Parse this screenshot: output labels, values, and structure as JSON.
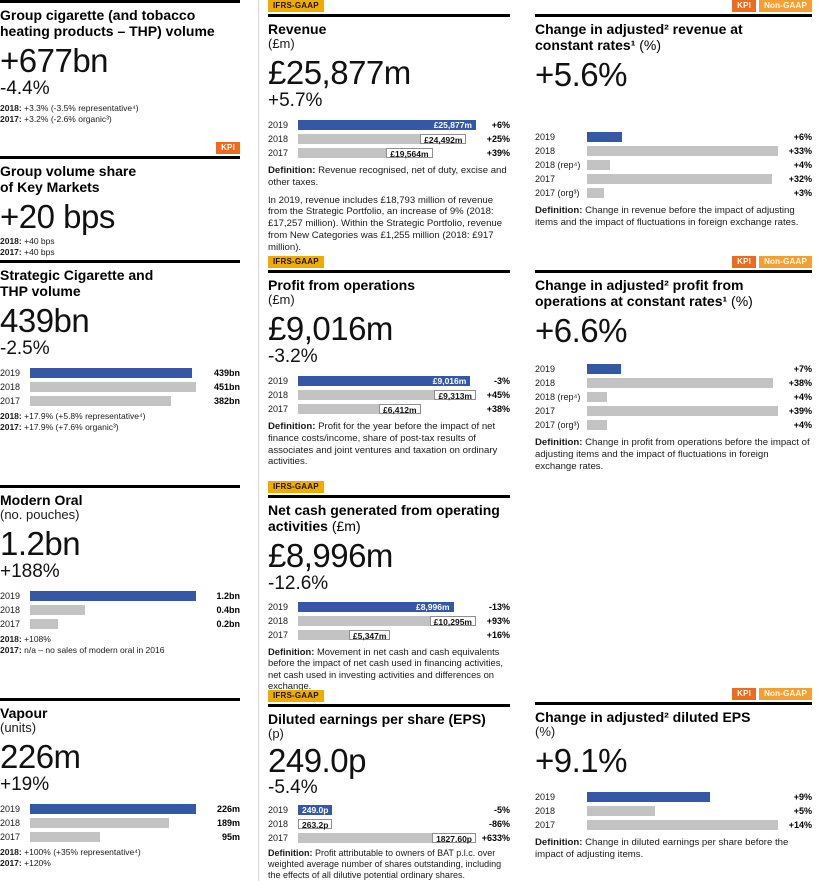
{
  "labels": {
    "definition": "Definition:"
  },
  "tags": {
    "kpi": "KPI",
    "non_gaap": "Non-GAAP",
    "ifrs": "IFRS-GAAP"
  },
  "colors": {
    "bar_blue": "#3557a6",
    "bar_gray": "#c3c3c3",
    "tag_kpi": "#ed6b21",
    "tag_non_gaap": "#f5a02e",
    "tag_ifrs": "#efab00",
    "rule": "#000000"
  },
  "left": {
    "volume": {
      "title": "Group cigarette (and tobacco heating products – THP) volume",
      "big": "+677bn",
      "delta": "-4.4%",
      "footnotes": [
        {
          "label": "2018:",
          "text": "+3.3% (-3.5% representative⁴)"
        },
        {
          "label": "2017:",
          "text": "+3.2% (-2.6% organic³)"
        }
      ]
    },
    "share": {
      "title": "Group volume share of Key Markets",
      "big": "+20 bps",
      "footnotes": [
        {
          "label": "2018:",
          "text": "+40 bps"
        },
        {
          "label": "2017:",
          "text": "+40 bps"
        }
      ]
    },
    "strategic": {
      "title": "Strategic Cigarette and THP volume",
      "big": "439bn",
      "delta": "-2.5%",
      "chart": {
        "type": "bar",
        "max": 451,
        "rows": [
          {
            "year": "2019",
            "v": 439,
            "label": "439bn"
          },
          {
            "year": "2018",
            "v": 451,
            "label": "451bn"
          },
          {
            "year": "2017",
            "v": 382,
            "label": "382bn"
          }
        ]
      },
      "footnotes": [
        {
          "label": "2018:",
          "text": "+17.9% (+5.8% representative⁴)"
        },
        {
          "label": "2017:",
          "text": "+17.9% (+7.6% organic³)"
        }
      ]
    },
    "modern_oral": {
      "title": "Modern Oral",
      "unit": "(no. pouches)",
      "big": "1.2bn",
      "delta": "+188%",
      "chart": {
        "type": "bar",
        "max": 1.2,
        "rows": [
          {
            "year": "2019",
            "v": 1.2,
            "label": "1.2bn"
          },
          {
            "year": "2018",
            "v": 0.4,
            "label": "0.4bn"
          },
          {
            "year": "2017",
            "v": 0.2,
            "label": "0.2bn"
          }
        ]
      },
      "footnotes": [
        {
          "label": "2018:",
          "text": "+108%"
        },
        {
          "label": "2017:",
          "text": "n/a – no sales of modern oral in 2016"
        }
      ]
    },
    "vapour": {
      "title": "Vapour",
      "unit": "(units)",
      "big": "226m",
      "delta": "+19%",
      "chart": {
        "type": "bar",
        "max": 226,
        "rows": [
          {
            "year": "2019",
            "v": 226,
            "label": "226m"
          },
          {
            "year": "2018",
            "v": 189,
            "label": "189m"
          },
          {
            "year": "2017",
            "v": 95,
            "label": "95m"
          }
        ]
      },
      "footnotes": [
        {
          "label": "2018:",
          "text": "+100% (+35% representative⁴)"
        },
        {
          "label": "2017:",
          "text": "+120%"
        }
      ]
    }
  },
  "middle": {
    "revenue": {
      "title": "Revenue",
      "unit": "(£m)",
      "big": "£25,877m",
      "delta": "+5.7%",
      "chart": {
        "type": "bar",
        "max": 25877,
        "rows": [
          {
            "year": "2019",
            "v": 25877,
            "label": "£25,877m",
            "pct": "+6%"
          },
          {
            "year": "2018",
            "v": 24492,
            "label": "£24,492m",
            "pct": "+25%"
          },
          {
            "year": "2017",
            "v": 19564,
            "label": "£19,564m",
            "pct": "+39%"
          }
        ]
      },
      "definition": "Revenue recognised, net of duty, excise and other taxes.",
      "body": "In 2019, revenue includes £18,793 million of revenue from the Strategic Portfolio, an increase of 9% (2018: £17,257 million). Within the Strategic Portfolio, revenue from New Categories was £1,255 million (2018: £917 million)."
    },
    "profit": {
      "title": "Profit from operations",
      "unit": "(£m)",
      "big": "£9,016m",
      "delta": "-3.2%",
      "chart": {
        "type": "bar",
        "max": 9313,
        "rows": [
          {
            "year": "2019",
            "v": 9016,
            "label": "£9,016m",
            "pct": "-3%"
          },
          {
            "year": "2018",
            "v": 9313,
            "label": "£9,313m",
            "pct": "+45%"
          },
          {
            "year": "2017",
            "v": 6412,
            "label": "£6,412m",
            "pct": "+38%"
          }
        ]
      },
      "definition": "Profit for the year before the impact of net finance costs/income, share of post-tax results of associates and joint ventures and taxation on ordinary activities."
    },
    "netcash": {
      "title": "Net cash generated from operating activities",
      "unit": "(£m)",
      "big": "£8,996m",
      "delta": "-12.6%",
      "chart": {
        "type": "bar",
        "max": 10295,
        "rows": [
          {
            "year": "2019",
            "v": 8996,
            "label": "£8,996m",
            "pct": "-13%"
          },
          {
            "year": "2018",
            "v": 10295,
            "label": "£10,295m",
            "pct": "+93%"
          },
          {
            "year": "2017",
            "v": 5347,
            "label": "£5,347m",
            "pct": "+16%"
          }
        ]
      },
      "definition": "Movement in net cash and cash equivalents before the impact of net cash used in financing activities, net cash used in investing activities and differences on exchange."
    },
    "eps": {
      "title": "Diluted earnings per share (EPS)",
      "unit": "(p)",
      "big": "249.0p",
      "delta": "-5.4%",
      "chart": {
        "type": "bar",
        "max": 1827.6,
        "rows": [
          {
            "year": "2019",
            "v": 249.0,
            "label": "249.0p",
            "pct": "-5%"
          },
          {
            "year": "2018",
            "v": 263.2,
            "label": "263.2p",
            "pct": "-86%"
          },
          {
            "year": "2017",
            "v": 1827.6,
            "label": "1827.60p",
            "pct": "+633%"
          }
        ]
      },
      "definition": "Profit attributable to owners of BAT p.l.c. over weighted average number of shares outstanding, including the effects of all dilutive potential ordinary shares."
    }
  },
  "right": {
    "rev_change": {
      "title": "Change in adjusted² revenue at constant rates¹",
      "unit": "(%)",
      "big": "+5.6%",
      "chart": {
        "type": "bar",
        "max": 33,
        "rows": [
          {
            "year": "2019",
            "v": 6,
            "pct": "+6%"
          },
          {
            "year": "2018",
            "v": 33,
            "pct": "+33%"
          },
          {
            "year": "2018 (rep⁴)",
            "v": 4,
            "pct": "+4%"
          },
          {
            "year": "2017",
            "v": 32,
            "pct": "+32%"
          },
          {
            "year": "2017 (org³)",
            "v": 3,
            "pct": "+3%"
          }
        ]
      },
      "definition": "Change in revenue before the impact of adjusting items and the impact of fluctuations in foreign exchange rates."
    },
    "pfo_change": {
      "title": "Change in adjusted² profit from operations at constant rates¹",
      "unit": "(%)",
      "big": "+6.6%",
      "chart": {
        "type": "bar",
        "max": 39,
        "rows": [
          {
            "year": "2019",
            "v": 7,
            "pct": "+7%"
          },
          {
            "year": "2018",
            "v": 38,
            "pct": "+38%"
          },
          {
            "year": "2018 (rep⁴)",
            "v": 4,
            "pct": "+4%"
          },
          {
            "year": "2017",
            "v": 39,
            "pct": "+39%"
          },
          {
            "year": "2017 (org³)",
            "v": 4,
            "pct": "+4%"
          }
        ]
      },
      "definition": "Change in profit from operations before the impact of adjusting items and the impact of fluctuations in foreign exchange rates."
    },
    "eps_change": {
      "title": "Change in adjusted² diluted EPS",
      "unit": "(%)",
      "big": "+9.1%",
      "chart": {
        "type": "bar",
        "max": 14,
        "rows": [
          {
            "year": "2019",
            "v": 9,
            "pct": "+9%"
          },
          {
            "year": "2018",
            "v": 5,
            "pct": "+5%"
          },
          {
            "year": "2017",
            "v": 14,
            "pct": "+14%"
          }
        ]
      },
      "definition": "Change in diluted earnings per share before the impact of adjusting items."
    }
  }
}
